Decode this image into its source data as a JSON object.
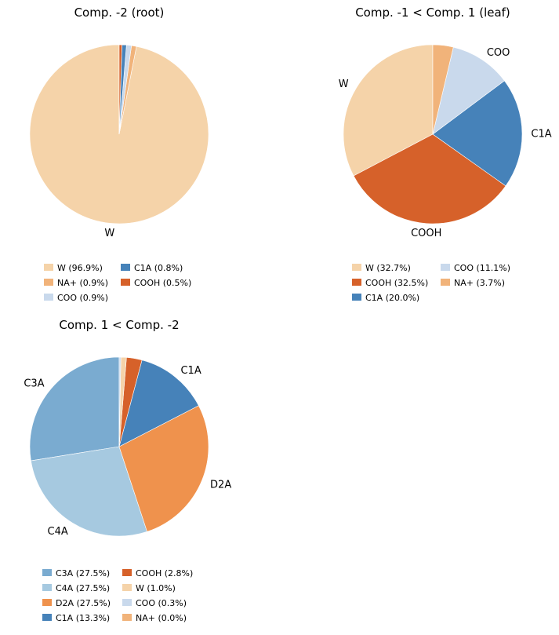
{
  "chart_data": [
    {
      "type": "pie",
      "title": "Comp. -2 (root)",
      "legend_placement": "bottom",
      "series": [
        {
          "slices": [
            {
              "label": "W",
              "value": 96.9,
              "color": "#f5d3a9",
              "legend": "W (96.9%)",
              "show_label": true
            },
            {
              "label": "NA+",
              "value": 0.9,
              "color": "#f1b37a",
              "legend": "NA+ (0.9%)",
              "show_label": false
            },
            {
              "label": "COO",
              "value": 0.9,
              "color": "#c9d9ec",
              "legend": "COO (0.9%)",
              "show_label": false
            },
            {
              "label": "C1A",
              "value": 0.8,
              "color": "#4682b9",
              "legend": "C1A (0.8%)",
              "show_label": false
            },
            {
              "label": "COOH",
              "value": 0.5,
              "color": "#d6612a",
              "legend": "COOH (0.5%)",
              "show_label": false
            }
          ]
        }
      ]
    },
    {
      "type": "pie",
      "title": "Comp. -1 < Comp. 1 (leaf)",
      "legend_placement": "bottom",
      "series": [
        {
          "slices": [
            {
              "label": "W",
              "value": 32.7,
              "color": "#f5d3a9",
              "legend": "W (32.7%)",
              "show_label": true
            },
            {
              "label": "COOH",
              "value": 32.5,
              "color": "#d6612a",
              "legend": "COOH (32.5%)",
              "show_label": true
            },
            {
              "label": "C1A",
              "value": 20.0,
              "color": "#4682b9",
              "legend": "C1A (20.0%)",
              "show_label": true
            },
            {
              "label": "COO",
              "value": 11.1,
              "color": "#c9d9ec",
              "legend": "COO (11.1%)",
              "show_label": true
            },
            {
              "label": "NA+",
              "value": 3.7,
              "color": "#f1b37a",
              "legend": "NA+ (3.7%)",
              "show_label": false
            }
          ]
        }
      ]
    },
    {
      "type": "pie",
      "title": "Comp. 1 < Comp. -2",
      "legend_placement": "bottom",
      "series": [
        {
          "slices": [
            {
              "label": "C3A",
              "value": 27.5,
              "color": "#7aabd0",
              "legend": "C3A (27.5%)",
              "show_label": true
            },
            {
              "label": "C4A",
              "value": 27.5,
              "color": "#a6c9e0",
              "legend": "C4A (27.5%)",
              "show_label": true
            },
            {
              "label": "D2A",
              "value": 27.5,
              "color": "#ef924d",
              "legend": "D2A (27.5%)",
              "show_label": true
            },
            {
              "label": "C1A",
              "value": 13.3,
              "color": "#4682b9",
              "legend": "C1A (13.3%)",
              "show_label": true
            },
            {
              "label": "COOH",
              "value": 2.8,
              "color": "#d6612a",
              "legend": "COOH (2.8%)",
              "show_label": false
            },
            {
              "label": "W",
              "value": 1.0,
              "color": "#f5d3a9",
              "legend": "W (1.0%)",
              "show_label": false
            },
            {
              "label": "COO",
              "value": 0.3,
              "color": "#c9d9ec",
              "legend": "COO (0.3%)",
              "show_label": false
            },
            {
              "label": "NA+",
              "value": 0.0,
              "color": "#f1b37a",
              "legend": "NA+ (0.0%)",
              "show_label": false
            }
          ]
        }
      ]
    }
  ]
}
